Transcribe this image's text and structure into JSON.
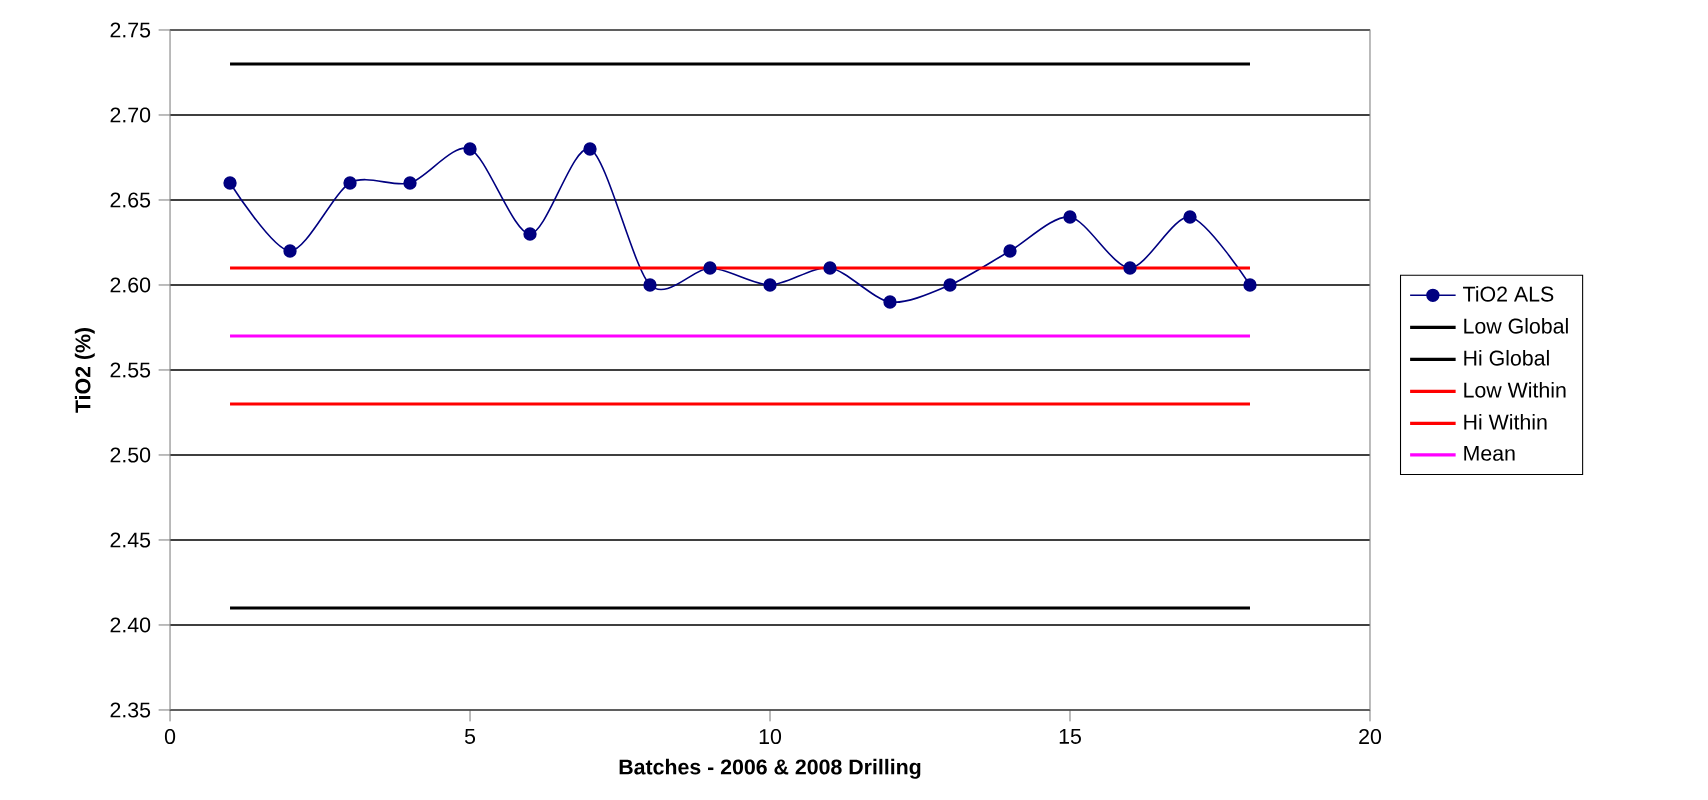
{
  "chart_data": {
    "type": "line",
    "xlabel": "Batches - 2006 & 2008 Drilling",
    "ylabel": "TiO2 (%)",
    "xlim": [
      0,
      20
    ],
    "xticks": [
      0,
      5,
      10,
      15,
      20
    ],
    "ylim": [
      2.35,
      2.75
    ],
    "yticks": [
      2.35,
      {
        "value": 2.4,
        "label": "2.40"
      },
      2.45,
      {
        "value": 2.5,
        "label": "2.50"
      },
      2.55,
      {
        "value": 2.6,
        "label": "2.60"
      },
      2.65,
      {
        "value": 2.7,
        "label": "2.70"
      },
      2.75
    ],
    "grid": "y",
    "legend": "right",
    "series": [
      {
        "name": "TiO2 ALS",
        "color": "#000080",
        "marker": "circle",
        "x": [
          1,
          2,
          3,
          4,
          5,
          6,
          7,
          8,
          9,
          10,
          11,
          12,
          13,
          14,
          15,
          16,
          17,
          18
        ],
        "values": [
          2.66,
          2.62,
          2.66,
          2.66,
          2.68,
          2.63,
          2.68,
          2.6,
          2.61,
          2.6,
          2.61,
          2.59,
          2.6,
          2.62,
          2.64,
          2.61,
          2.64,
          2.6
        ]
      },
      {
        "name": "Low Global",
        "color": "#000000",
        "marker": "none",
        "x": [
          1,
          18
        ],
        "values": [
          2.41,
          2.41
        ]
      },
      {
        "name": "Hi Global",
        "color": "#000000",
        "marker": "none",
        "x": [
          1,
          18
        ],
        "values": [
          2.73,
          2.73
        ]
      },
      {
        "name": "Low Within",
        "color": "#ff0000",
        "marker": "none",
        "x": [
          1,
          18
        ],
        "values": [
          2.53,
          2.53
        ]
      },
      {
        "name": "Hi Within",
        "color": "#ff0000",
        "marker": "none",
        "x": [
          1,
          18
        ],
        "values": [
          2.61,
          2.61
        ]
      },
      {
        "name": "Mean",
        "color": "#ff00ff",
        "marker": "none",
        "x": [
          1,
          18
        ],
        "values": [
          2.57,
          2.57
        ]
      }
    ]
  }
}
